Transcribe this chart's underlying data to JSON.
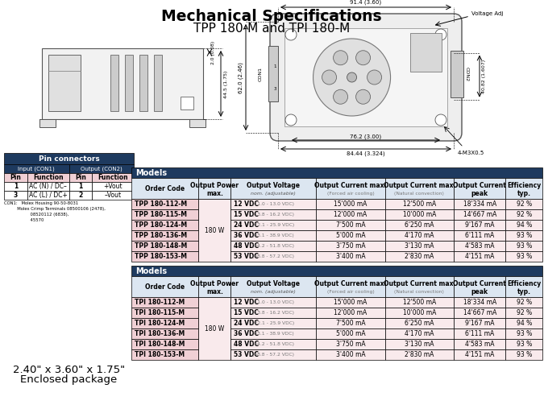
{
  "title_bold": "Mechanical Specifications",
  "title_sub": "TPP 180-M and TPI 180-M",
  "background": "#ffffff",
  "pin_connector_title": "Pin connectors",
  "pin_col_headers": [
    "Pin",
    "Function",
    "Pin",
    "Function"
  ],
  "pin_subheaders": [
    "Input (CON1)",
    "Output (CON2)"
  ],
  "pin_rows": [
    [
      "1",
      "AC (N) / DC–",
      "1",
      "+Vout"
    ],
    [
      "3",
      "AC (L) / DC+",
      "2",
      "–Vout"
    ]
  ],
  "con1_note_lines": [
    "CON1:   Molex Housing 90-50-8031",
    "          Molex Crimp Terminals 08500106 (2478),",
    "                    08520112 (6838),",
    "                    45570"
  ],
  "package_text_line1": "2.40\" x 3.60\" x 1.75\"",
  "package_text_line2": "Enclosed package",
  "col_headers": [
    "Order Code",
    "Output Power\nmax.",
    "Output Voltage\nnom. (adjustable)",
    "Output Current max.\n(Forced air cooling)",
    "Output Current max.\n(Natural convection)",
    "Output Current\npeak",
    "Efficiency\ntyp."
  ],
  "tpp_rows": [
    [
      "TPP 180-112-M",
      "12 VDC (11.0 - 13.0 VDC)",
      "15'000 mA",
      "12'500 mA",
      "18'334 mA",
      "92 %"
    ],
    [
      "TPP 180-115-M",
      "15 VDC (13.8 - 16.2 VDC)",
      "12'000 mA",
      "10'000 mA",
      "14'667 mA",
      "92 %"
    ],
    [
      "TPP 180-124-M",
      "24 VDC (22.1 - 25.9 VDC)",
      "7'500 mA",
      "6'250 mA",
      "9'167 mA",
      "94 %"
    ],
    [
      "TPP 180-136-M",
      "36 VDC (33.1 - 38.9 VDC)",
      "5'000 mA",
      "4'170 mA",
      "6'111 mA",
      "93 %"
    ],
    [
      "TPP 180-148-M",
      "48 VDC (44.2 - 51.8 VDC)",
      "3'750 mA",
      "3'130 mA",
      "4'583 mA",
      "93 %"
    ],
    [
      "TPP 180-153-M",
      "53 VDC (48.8 - 57.2 VDC)",
      "3'400 mA",
      "2'830 mA",
      "4'151 mA",
      "93 %"
    ]
  ],
  "tpi_rows": [
    [
      "TPI 180-112-M",
      "12 VDC (11.0 - 13.0 VDC)",
      "15'000 mA",
      "12'500 mA",
      "18'334 mA",
      "92 %"
    ],
    [
      "TPI 180-115-M",
      "15 VDC (13.8 - 16.2 VDC)",
      "12'000 mA",
      "10'000 mA",
      "14'667 mA",
      "92 %"
    ],
    [
      "TPI 180-124-M",
      "24 VDC (22.1 - 25.9 VDC)",
      "7'500 mA",
      "6'250 mA",
      "9'167 mA",
      "94 %"
    ],
    [
      "TPI 180-136-M",
      "36 VDC (33.1 - 38.9 VDC)",
      "5'000 mA",
      "4'170 mA",
      "6'111 mA",
      "93 %"
    ],
    [
      "TPI 180-148-M",
      "48 VDC (44.2 - 51.8 VDC)",
      "3'750 mA",
      "3'130 mA",
      "4'583 mA",
      "93 %"
    ],
    [
      "TPI 180-153-M",
      "53 VDC (48.8 - 57.2 VDC)",
      "3'400 mA",
      "2'830 mA",
      "4'151 mA",
      "93 %"
    ]
  ],
  "power_merged": "180 W",
  "table_title": "Models",
  "header_bg": "#1e3a5f",
  "header_fg": "#ffffff",
  "col_header_bg": "#dce6f1",
  "data_row_bg": "#f9eaec",
  "order_col_bg": "#f0d0d5",
  "pin_title_bg": "#1e3a5f",
  "pin_subhdr_bg": "#1e3a5f",
  "pin_col_hdr_bg": "#f0d0d5",
  "dim_color": "#333333",
  "diagram_edge": "#555555",
  "diagram_face": "#e8e8e8"
}
